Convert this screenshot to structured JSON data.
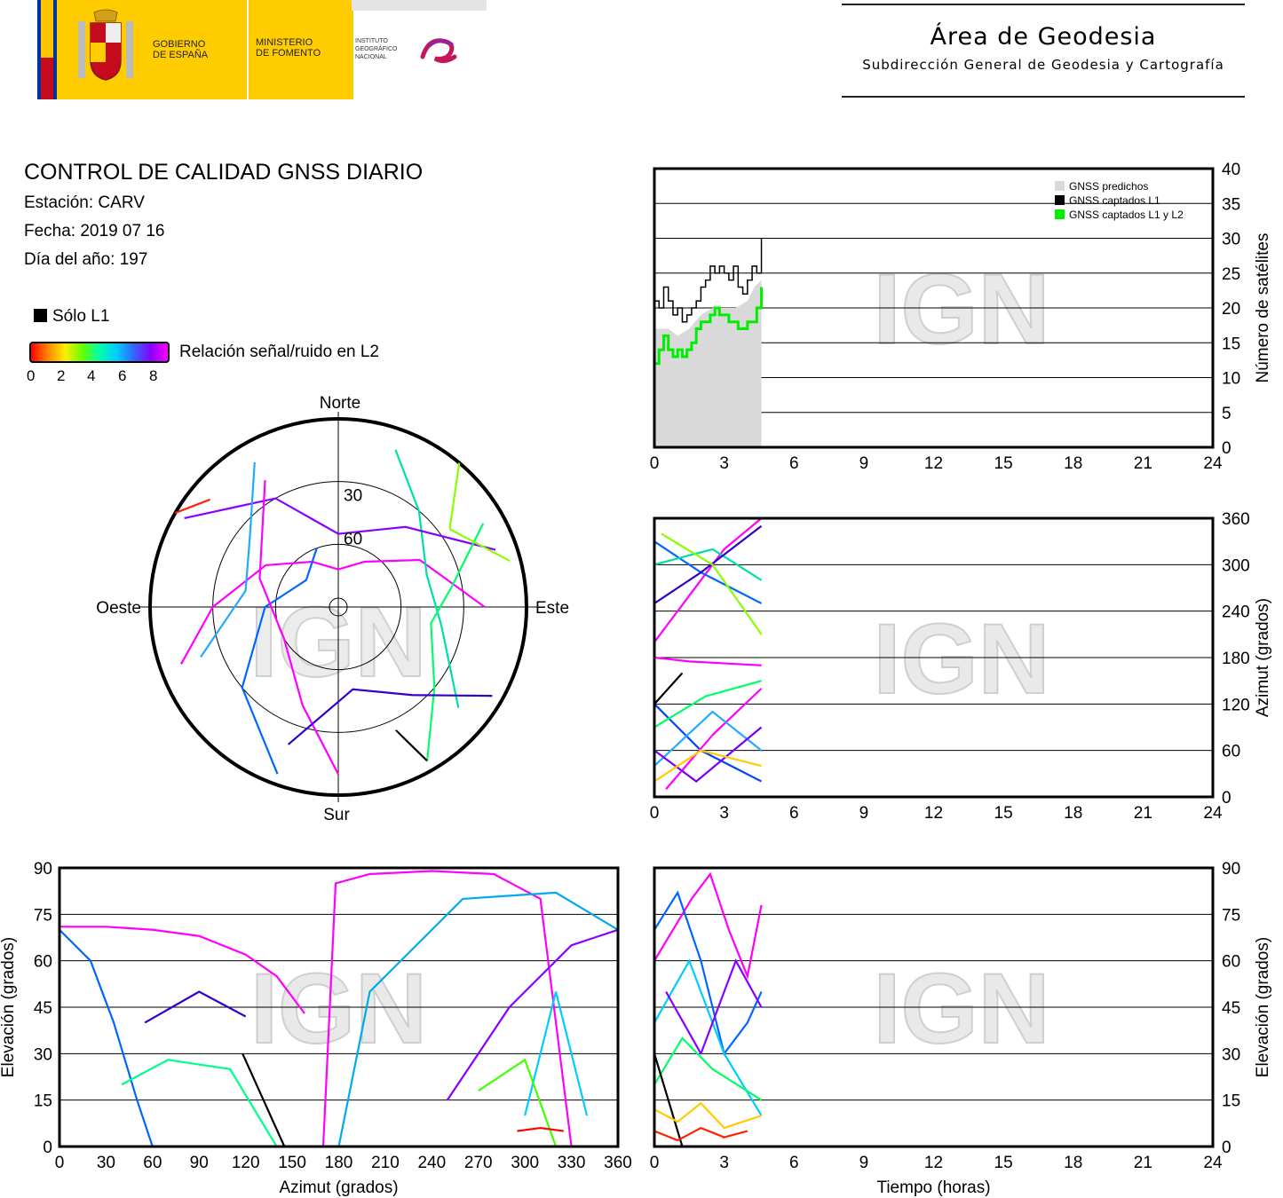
{
  "header": {
    "gobierno": "GOBIERNO\nDE ESPAÑA",
    "ministerio": "MINISTERIO\nDE FOMENTO",
    "instituto": "INSTITUTO\nGEOGRÁFICO\nNACIONAL",
    "area_title": "Área de Geodesia",
    "area_subtitle": "Subdirección General de Geodesia y Cartografía"
  },
  "info": {
    "title": "CONTROL DE CALIDAD GNSS DIARIO",
    "station": "Estación: CARV",
    "date": "Fecha: 2019 07 16",
    "doy": "Día del año: 197"
  },
  "legend": {
    "l1_only": "Sólo L1",
    "snr_label": "Relación señal/ruido en L2",
    "snr_ticks": [
      "0",
      "2",
      "4",
      "6",
      "8"
    ],
    "snr_colors": [
      "#ff0000",
      "#ff8800",
      "#ffee00",
      "#66ff00",
      "#00ffaa",
      "#00ccff",
      "#3366ff",
      "#8800ff",
      "#ff00ff"
    ]
  },
  "watermark": "IGN",
  "chart_data": [
    {
      "type": "line",
      "id": "satellites-vs-time",
      "xlabel": "",
      "ylabel": "Número de satélites",
      "xlim": [
        0,
        24
      ],
      "ylim": [
        0,
        40
      ],
      "xticks": [
        "0",
        "3",
        "6",
        "9",
        "12",
        "15",
        "18",
        "21",
        "24"
      ],
      "yticks": [
        "0",
        "5",
        "10",
        "15",
        "20",
        "25",
        "30",
        "35",
        "40"
      ],
      "series": [
        {
          "name": "GNSS predichos",
          "color": "#d9d9d9",
          "x": [
            0,
            0.2,
            0.6,
            1.0,
            1.5,
            2.0,
            2.5,
            3.0,
            3.5,
            4.0,
            4.3,
            4.6
          ],
          "y": [
            17,
            17,
            17,
            16,
            17,
            19,
            20,
            20,
            20,
            21,
            23,
            24
          ]
        },
        {
          "name": "GNSS captados L1",
          "color": "#000000",
          "x": [
            0,
            0.2,
            0.4,
            0.6,
            0.8,
            1.0,
            1.2,
            1.4,
            1.6,
            1.8,
            2.0,
            2.2,
            2.4,
            2.6,
            2.8,
            3.0,
            3.2,
            3.4,
            3.6,
            3.8,
            4.0,
            4.2,
            4.4,
            4.6
          ],
          "y": [
            21,
            20,
            23,
            21,
            19,
            20,
            18,
            19,
            20,
            21,
            23,
            24,
            26,
            25,
            26,
            25,
            24,
            26,
            23,
            22,
            24,
            26,
            25,
            30
          ]
        },
        {
          "name": "GNSS captados L1 y L2",
          "color": "#00ee00",
          "x": [
            0,
            0.2,
            0.4,
            0.6,
            0.8,
            1.0,
            1.2,
            1.4,
            1.6,
            1.8,
            2.0,
            2.2,
            2.4,
            2.6,
            2.8,
            3.0,
            3.2,
            3.4,
            3.6,
            3.8,
            4.0,
            4.2,
            4.4,
            4.6
          ],
          "y": [
            12,
            14,
            16,
            14,
            13,
            14,
            13,
            14,
            15,
            17,
            18,
            18,
            19,
            20,
            19,
            19,
            18,
            18,
            17,
            17,
            18,
            18,
            20,
            23
          ]
        }
      ]
    },
    {
      "type": "scatter",
      "id": "azimuth-vs-time",
      "xlabel": "",
      "ylabel": "Azimut (grados)",
      "xlim": [
        0,
        24
      ],
      "ylim": [
        0,
        360
      ],
      "xticks": [
        "0",
        "3",
        "6",
        "9",
        "12",
        "15",
        "18",
        "21",
        "24"
      ],
      "yticks": [
        "0",
        "60",
        "120",
        "180",
        "240",
        "300",
        "360"
      ],
      "tracks": [
        {
          "color": "#ff00ff",
          "x": [
            0,
            1.5,
            3.0,
            4.6
          ],
          "y": [
            200,
            260,
            320,
            360
          ]
        },
        {
          "color": "#0066ff",
          "x": [
            0,
            2,
            4.6
          ],
          "y": [
            330,
            290,
            250
          ]
        },
        {
          "color": "#00ddaa",
          "x": [
            0,
            2.5,
            4.6
          ],
          "y": [
            300,
            320,
            280
          ]
        },
        {
          "color": "#3300cc",
          "x": [
            0,
            2.0,
            4.6
          ],
          "y": [
            250,
            290,
            350
          ]
        },
        {
          "color": "#88ff00",
          "x": [
            0.3,
            2.5,
            4.6
          ],
          "y": [
            340,
            300,
            210
          ]
        },
        {
          "color": "#ff00ff",
          "x": [
            0,
            1.5,
            4.6
          ],
          "y": [
            180,
            175,
            170
          ]
        },
        {
          "color": "#0044ff",
          "x": [
            0,
            2.0,
            4.6
          ],
          "y": [
            120,
            60,
            20
          ]
        },
        {
          "color": "#00ff66",
          "x": [
            0,
            2.2,
            4.6
          ],
          "y": [
            90,
            130,
            150
          ]
        },
        {
          "color": "#ff00ff",
          "x": [
            0.5,
            2.5,
            4.6
          ],
          "y": [
            10,
            80,
            140
          ]
        },
        {
          "color": "#22aaff",
          "x": [
            0,
            2.5,
            4.6
          ],
          "y": [
            40,
            110,
            60
          ]
        },
        {
          "color": "#7700ff",
          "x": [
            0,
            1.8,
            4.6
          ],
          "y": [
            60,
            20,
            90
          ]
        },
        {
          "color": "#ffcc00",
          "x": [
            0,
            2.0,
            4.6
          ],
          "y": [
            20,
            60,
            40
          ]
        },
        {
          "color": "#000000",
          "x": [
            0,
            1.2
          ],
          "y": [
            120,
            160
          ]
        }
      ]
    },
    {
      "type": "scatter",
      "id": "elevation-vs-azimuth",
      "xlabel": "Azimut (grados)",
      "ylabel": "Elevación (grados)",
      "xlim": [
        0,
        360
      ],
      "ylim": [
        0,
        90
      ],
      "xticks": [
        "0",
        "30",
        "60",
        "90",
        "120",
        "150",
        "180",
        "210",
        "240",
        "270",
        "300",
        "330",
        "360"
      ],
      "yticks": [
        "0",
        "15",
        "30",
        "45",
        "60",
        "75",
        "90"
      ],
      "tracks": [
        {
          "color": "#ff00ff",
          "x": [
            0,
            30,
            60,
            90,
            120,
            140,
            158
          ],
          "y": [
            71,
            71,
            70,
            68,
            62,
            55,
            43
          ]
        },
        {
          "color": "#0066ff",
          "x": [
            0,
            20,
            35,
            50,
            60
          ],
          "y": [
            70,
            60,
            40,
            15,
            0
          ]
        },
        {
          "color": "#ff00ff",
          "x": [
            170,
            178,
            200,
            240,
            280,
            310,
            330
          ],
          "y": [
            0,
            85,
            88,
            89,
            88,
            80,
            0
          ]
        },
        {
          "color": "#00aaee",
          "x": [
            180,
            200,
            260,
            320,
            360
          ],
          "y": [
            0,
            50,
            80,
            82,
            70
          ]
        },
        {
          "color": "#3300cc",
          "x": [
            55,
            90,
            120
          ],
          "y": [
            40,
            50,
            42
          ]
        },
        {
          "color": "#00ff88",
          "x": [
            40,
            70,
            110,
            140
          ],
          "y": [
            20,
            28,
            25,
            0
          ]
        },
        {
          "color": "#8800ff",
          "x": [
            250,
            290,
            330,
            360
          ],
          "y": [
            15,
            45,
            65,
            70
          ]
        },
        {
          "color": "#00ccff",
          "x": [
            300,
            320,
            340
          ],
          "y": [
            10,
            50,
            10
          ]
        },
        {
          "color": "#44ff00",
          "x": [
            270,
            300,
            320
          ],
          "y": [
            18,
            28,
            0
          ]
        },
        {
          "color": "#000000",
          "x": [
            118,
            145
          ],
          "y": [
            30,
            0
          ]
        },
        {
          "color": "#ff0000",
          "x": [
            295,
            310,
            325
          ],
          "y": [
            5,
            6,
            5
          ]
        }
      ]
    },
    {
      "type": "scatter",
      "id": "elevation-vs-time",
      "xlabel": "Tiempo (horas)",
      "ylabel": "Elevación (grados)",
      "xlim": [
        0,
        24
      ],
      "ylim": [
        0,
        90
      ],
      "xticks": [
        "0",
        "3",
        "6",
        "9",
        "12",
        "15",
        "18",
        "21",
        "24"
      ],
      "yticks": [
        "0",
        "15",
        "30",
        "45",
        "60",
        "75",
        "90"
      ],
      "tracks": [
        {
          "color": "#ff00ff",
          "x": [
            0,
            0.8,
            1.6,
            2.4,
            3.2,
            4.0,
            4.6
          ],
          "y": [
            60,
            70,
            80,
            88,
            70,
            55,
            78
          ]
        },
        {
          "color": "#0066ff",
          "x": [
            0,
            1.0,
            2.0,
            3.0,
            4.0,
            4.6
          ],
          "y": [
            70,
            82,
            60,
            30,
            40,
            50
          ]
        },
        {
          "color": "#00ccff",
          "x": [
            0,
            1.5,
            3.0,
            4.6
          ],
          "y": [
            40,
            60,
            30,
            10
          ]
        },
        {
          "color": "#00ff66",
          "x": [
            0,
            1.2,
            2.5,
            4.6
          ],
          "y": [
            20,
            35,
            25,
            15
          ]
        },
        {
          "color": "#8800ff",
          "x": [
            0.5,
            2.0,
            3.5,
            4.6
          ],
          "y": [
            50,
            30,
            60,
            45
          ]
        },
        {
          "color": "#000000",
          "x": [
            0,
            1.2
          ],
          "y": [
            30,
            0
          ]
        },
        {
          "color": "#ff2200",
          "x": [
            0,
            1.0,
            2.0,
            3.0,
            4.0
          ],
          "y": [
            5,
            2,
            6,
            3,
            5
          ]
        },
        {
          "color": "#ffcc00",
          "x": [
            0,
            1.0,
            2.0,
            3.0,
            4.6
          ],
          "y": [
            12,
            8,
            14,
            6,
            10
          ]
        }
      ]
    },
    {
      "type": "scatter",
      "id": "skyplot",
      "labels": {
        "north": "Norte",
        "south": "Sur",
        "east": "Este",
        "west": "Oeste",
        "ring30": "30",
        "ring60": "60"
      },
      "tracks_az_el": [
        {
          "color": "#ff00ff",
          "az": [
            250,
            270,
            300,
            330,
            0,
            30,
            60,
            90
          ],
          "el": [
            10,
            30,
            50,
            65,
            72,
            65,
            45,
            20
          ]
        },
        {
          "color": "#0066ff",
          "az": [
            200,
            230,
            270,
            310,
            340
          ],
          "el": [
            5,
            30,
            55,
            70,
            60
          ]
        },
        {
          "color": "#00ddaa",
          "az": [
            20,
            40,
            70,
            100,
            130
          ],
          "el": [
            10,
            30,
            45,
            40,
            15
          ]
        },
        {
          "color": "#8800ff",
          "az": [
            300,
            330,
            0,
            40,
            70
          ],
          "el": [
            5,
            30,
            55,
            40,
            10
          ]
        },
        {
          "color": "#ff00ff",
          "az": [
            180,
            200,
            240,
            290,
            330
          ],
          "el": [
            10,
            40,
            60,
            50,
            20
          ]
        },
        {
          "color": "#00ff66",
          "az": [
            150,
            130,
            100,
            80,
            60
          ],
          "el": [
            5,
            30,
            45,
            35,
            10
          ]
        },
        {
          "color": "#3300cc",
          "az": [
            120,
            140,
            170,
            200
          ],
          "el": [
            5,
            35,
            50,
            20
          ]
        },
        {
          "color": "#22aaff",
          "az": [
            330,
            310,
            280,
            250
          ],
          "el": [
            10,
            35,
            45,
            20
          ]
        },
        {
          "color": "#88ff00",
          "az": [
            40,
            55,
            75
          ],
          "el": [
            0,
            25,
            5
          ]
        },
        {
          "color": "#000000",
          "az": [
            150,
            155
          ],
          "el": [
            5,
            25
          ]
        },
        {
          "color": "#ff2200",
          "az": [
            300,
            310
          ],
          "el": [
            0,
            10
          ]
        }
      ]
    }
  ]
}
